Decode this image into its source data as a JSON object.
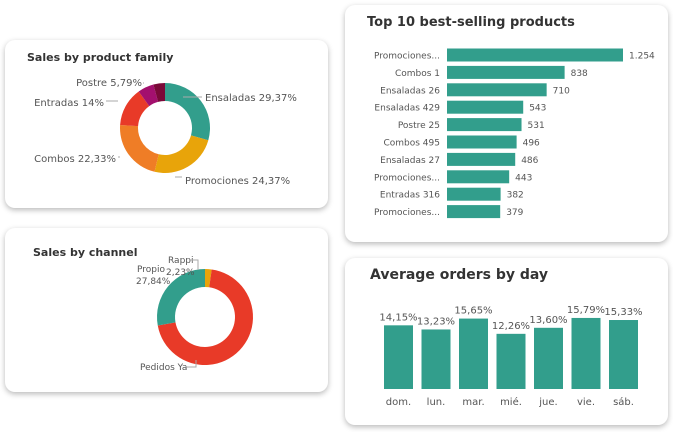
{
  "colors": {
    "teal": "#329e8c"
  },
  "chart_data": [
    {
      "type": "pie",
      "title": "Sales by product family",
      "donut": true,
      "slices": [
        {
          "label": "Ensaladas 29,37%",
          "value": 29.37,
          "color": "#329e8c"
        },
        {
          "label": "Promociones 24,37%",
          "value": 24.37,
          "color": "#e8a40a"
        },
        {
          "label": "Combos 22,33%",
          "value": 22.33,
          "color": "#ef7d26"
        },
        {
          "label": "Entradas 14%",
          "value": 14,
          "color": "#e83a28"
        },
        {
          "label": "Postre 5,79%",
          "value": 5.79,
          "color": "#a3106e"
        },
        {
          "label": "",
          "value": 4.14,
          "color": "#7a0938"
        }
      ]
    },
    {
      "type": "pie",
      "title": "Sales by channel",
      "donut": true,
      "slices": [
        {
          "label": "Rappi",
          "pct": "2,23%",
          "value": 2.23,
          "color": "#e8a40a"
        },
        {
          "label": "Pedidos Ya",
          "pct": "",
          "value": 69.93,
          "color": "#e83a28"
        },
        {
          "label": "Propio",
          "pct": "27,84%",
          "value": 27.84,
          "color": "#329e8c"
        }
      ]
    },
    {
      "type": "bar",
      "orientation": "horizontal",
      "title": "Top 10 best-selling products",
      "categories": [
        "Promociones...",
        "Combos 1",
        "Ensaladas 26",
        "Ensaladas 429",
        "Postre 25",
        "Combos 495",
        "Ensaladas 27",
        "Promociones...",
        "Entradas 316",
        "Promociones..."
      ],
      "values": [
        1254,
        838,
        710,
        543,
        531,
        496,
        486,
        443,
        382,
        379
      ],
      "value_labels": [
        "1.254",
        "838",
        "710",
        "543",
        "531",
        "496",
        "486",
        "443",
        "382",
        "379"
      ]
    },
    {
      "type": "bar",
      "title": "Average orders by day",
      "categories": [
        "dom.",
        "lun.",
        "mar.",
        "mié.",
        "jue.",
        "vie.",
        "sáb."
      ],
      "values": [
        14.15,
        13.23,
        15.65,
        12.26,
        13.6,
        15.79,
        15.33
      ],
      "value_labels": [
        "14,15%",
        "13,23%",
        "15,65%",
        "12,26%",
        "13,60%",
        "15,79%",
        "15,33%"
      ]
    }
  ]
}
